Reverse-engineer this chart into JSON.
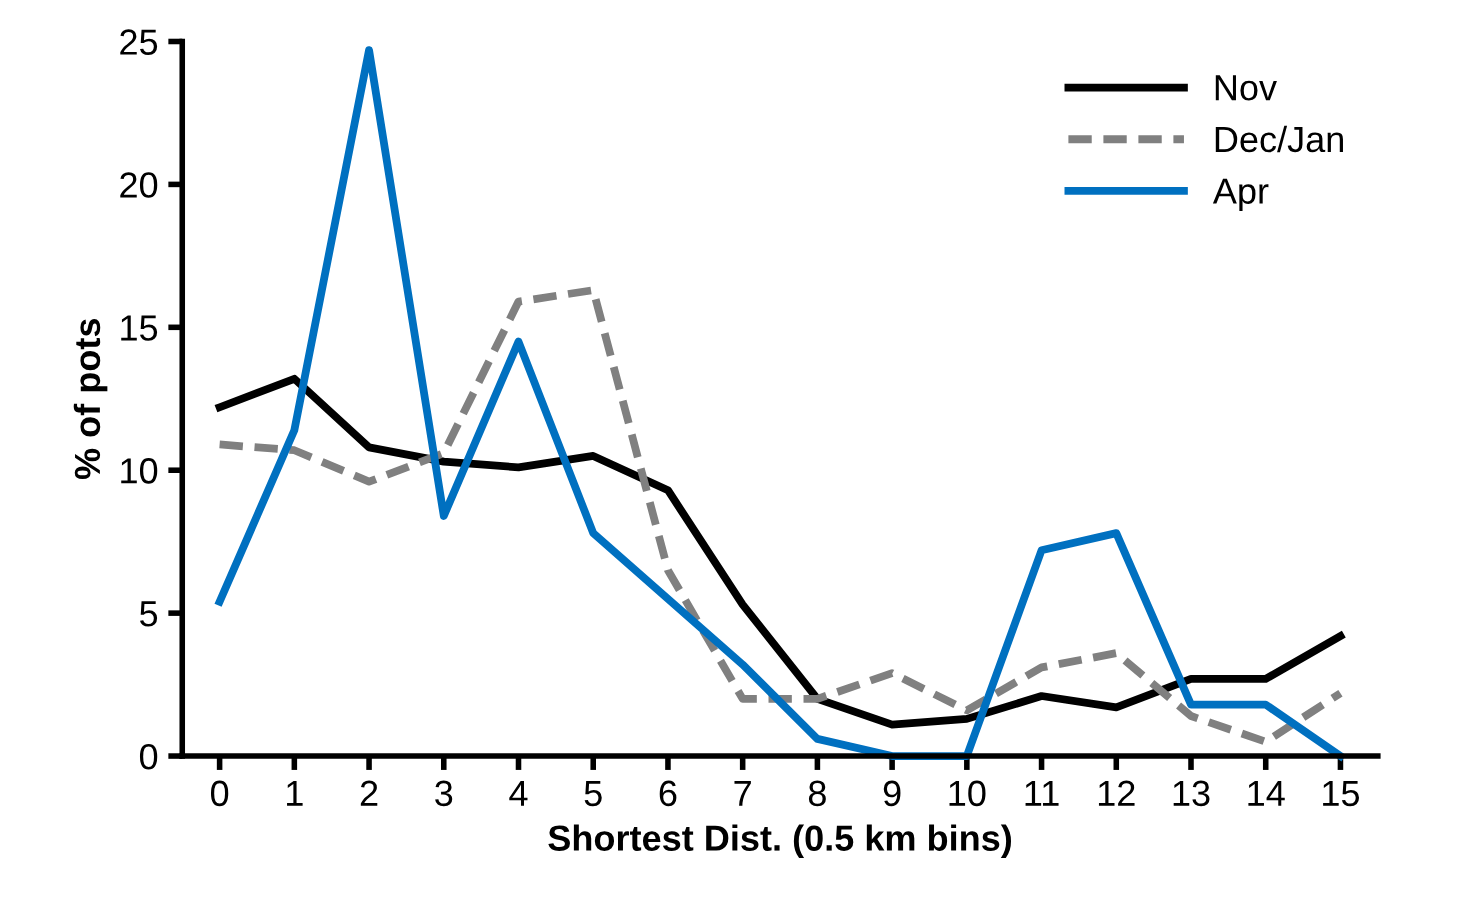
{
  "chart_data": {
    "type": "line",
    "xlabel": "Shortest Dist. (0.5 km bins)",
    "ylabel": "% of pots",
    "categories": [
      "0",
      "1",
      "2",
      "3",
      "4",
      "5",
      "6",
      "7",
      "8",
      "9",
      "10",
      "11",
      "12",
      "13",
      "14",
      "15"
    ],
    "series": [
      {
        "name": "Nov",
        "color": "#000000",
        "line_style": "solid",
        "values": [
          12.2,
          13.2,
          10.8,
          10.3,
          10.1,
          10.5,
          9.3,
          5.3,
          2.0,
          1.1,
          1.3,
          2.1,
          1.7,
          2.7,
          2.7,
          4.2
        ]
      },
      {
        "name": "Dec/Jan",
        "color": "#808080",
        "line_style": "dashed",
        "values": [
          10.9,
          10.7,
          9.6,
          10.6,
          15.9,
          16.3,
          6.5,
          2.0,
          2.0,
          2.9,
          1.6,
          3.1,
          3.6,
          1.4,
          0.5,
          2.2
        ]
      },
      {
        "name": "Apr",
        "color": "#0070c0",
        "line_style": "solid",
        "values": [
          5.4,
          11.4,
          24.7,
          8.4,
          14.5,
          7.8,
          5.5,
          3.2,
          0.6,
          0,
          0,
          7.2,
          7.8,
          1.8,
          1.8,
          0
        ]
      }
    ],
    "ylim": [
      0,
      25
    ],
    "yticks": [
      0,
      5,
      10,
      15,
      20,
      25
    ],
    "grid": false,
    "legend": "top right",
    "marker": "none"
  }
}
